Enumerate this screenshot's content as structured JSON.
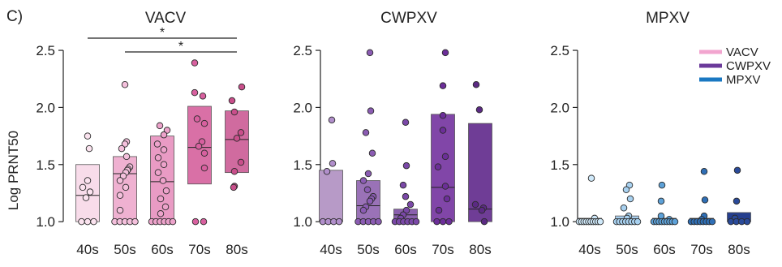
{
  "panel_label": "C)",
  "ylabel": "Log PRNT50",
  "legend": [
    {
      "label": "VACV",
      "color": "#f2a5cf"
    },
    {
      "label": "CWPXV",
      "color": "#6b3a9a"
    },
    {
      "label": "MPXV",
      "color": "#1a78c2"
    }
  ],
  "chart_data": [
    {
      "type": "scatter",
      "title": "VACV",
      "ylabel": "Log PRNT50",
      "categories": [
        "40s",
        "50s",
        "60s",
        "70s",
        "80s"
      ],
      "ylim": [
        0.93,
        2.55
      ],
      "yticks": [
        "1.0",
        "1.5",
        "2.0",
        "2.5"
      ],
      "box_colors": [
        "#f8dcea",
        "#efb1d1",
        "#e99bc4",
        "#d970a6",
        "#d06b9f"
      ],
      "point_colors": [
        "#fbe3ef",
        "#f4c0dc",
        "#eda3cb",
        "#d8609f",
        "#c94f8b"
      ],
      "boxes": [
        {
          "low": 1.0,
          "high": 1.5,
          "median": 1.23
        },
        {
          "low": 1.0,
          "high": 1.57,
          "median": 1.42
        },
        {
          "low": 1.0,
          "high": 1.75,
          "median": 1.35
        },
        {
          "low": 1.33,
          "high": 2.01,
          "median": 1.65
        },
        {
          "low": 1.43,
          "high": 1.97,
          "median": 1.72
        }
      ],
      "points": [
        [
          1.75,
          1.64,
          1.36,
          1.3,
          1.26,
          1.21,
          1.0,
          1.0,
          1.0
        ],
        [
          2.2,
          1.7,
          1.68,
          1.64,
          1.57,
          1.48,
          1.46,
          1.45,
          1.43,
          1.4,
          1.36,
          1.3,
          1.23,
          1.1,
          1.0,
          1.0,
          1.0,
          1.0,
          1.0
        ],
        [
          1.84,
          1.8,
          1.76,
          1.68,
          1.63,
          1.56,
          1.5,
          1.43,
          1.36,
          1.27,
          1.2,
          1.13,
          1.07,
          1.0,
          1.0,
          1.0,
          1.0,
          1.0,
          1.0
        ],
        [
          2.39,
          2.13,
          2.1,
          1.9,
          1.86,
          1.7,
          1.66,
          1.6,
          1.47,
          1.0,
          1.0
        ],
        [
          2.18,
          2.06,
          1.96,
          1.78,
          1.73,
          1.52,
          1.44,
          1.31,
          1.3
        ]
      ],
      "significance": [
        {
          "from": "40s",
          "to": "80s",
          "label": "*"
        },
        {
          "from": "50s",
          "to": "80s",
          "label": "*"
        }
      ]
    },
    {
      "type": "scatter",
      "title": "CWPXV",
      "categories": [
        "40s",
        "50s",
        "60s",
        "70s",
        "80s"
      ],
      "ylim": [
        0.93,
        2.55
      ],
      "yticks": [
        "1.0",
        "1.5",
        "2.0",
        "2.5"
      ],
      "box_colors": [
        "#b79ac7",
        "#9a72b7",
        "#8a60ad",
        "#8146a8",
        "#6f3d96"
      ],
      "point_colors": [
        "#b18fcb",
        "#8b5cb3",
        "#7a48a7",
        "#6c2e99",
        "#5b2a83"
      ],
      "boxes": [
        {
          "low": 1.0,
          "high": 1.45,
          "median": 1.0
        },
        {
          "low": 1.0,
          "high": 1.36,
          "median": 1.14
        },
        {
          "low": 1.0,
          "high": 1.11,
          "median": 1.06
        },
        {
          "low": 1.0,
          "high": 1.94,
          "median": 1.3
        },
        {
          "low": 1.0,
          "high": 1.86,
          "median": 1.11
        }
      ],
      "points": [
        [
          1.89,
          1.51,
          1.44,
          1.0,
          1.0,
          1.0,
          1.0
        ],
        [
          2.48,
          1.97,
          1.78,
          1.6,
          1.42,
          1.36,
          1.28,
          1.22,
          1.2,
          1.18,
          1.13,
          1.1,
          1.0,
          1.0,
          1.0,
          1.0,
          1.0
        ],
        [
          1.87,
          1.49,
          1.32,
          1.22,
          1.15,
          1.1,
          1.06,
          1.03,
          1.0,
          1.0,
          1.0,
          1.0,
          1.0,
          1.0
        ],
        [
          2.48,
          2.19,
          1.93,
          1.8,
          1.57,
          1.48,
          1.31,
          1.2,
          1.1,
          1.0,
          1.0,
          1.0
        ],
        [
          2.2,
          1.98,
          1.15,
          1.12,
          1.1,
          1.0
        ]
      ]
    },
    {
      "type": "scatter",
      "title": "MPXV",
      "categories": [
        "40s",
        "50s",
        "60s",
        "70s",
        "80s"
      ],
      "ylim": [
        0.93,
        2.55
      ],
      "yticks": [
        "1.0",
        "1.5",
        "2.0",
        "2.5"
      ],
      "box_colors": [
        "#cfe6f6",
        "#a9cfee",
        "#6aa7d9",
        "#3f7fc0",
        "#253f8f"
      ],
      "point_colors": [
        "#cfe9fa",
        "#a8d1f0",
        "#5da1d8",
        "#2f6fb6",
        "#2a4a9a"
      ],
      "boxes": [
        {
          "low": 1.0,
          "high": 1.03,
          "median": 1.0
        },
        {
          "low": 1.0,
          "high": 1.05,
          "median": 1.0
        },
        {
          "low": 1.0,
          "high": 1.03,
          "median": 1.0
        },
        {
          "low": 1.0,
          "high": 1.03,
          "median": 1.0
        },
        {
          "low": 1.0,
          "high": 1.08,
          "median": 1.0
        }
      ],
      "points": [
        [
          1.38,
          1.03,
          1.0,
          1.0,
          1.0,
          1.0,
          1.0,
          1.0,
          1.0,
          1.0,
          1.0,
          1.0
        ],
        [
          1.32,
          1.28,
          1.2,
          1.12,
          1.05,
          1.03,
          1.0,
          1.0,
          1.0,
          1.0,
          1.0,
          1.0,
          1.0,
          1.0
        ],
        [
          1.32,
          1.18,
          1.05,
          1.02,
          1.0,
          1.0,
          1.0,
          1.0,
          1.0,
          1.0,
          1.0,
          1.0,
          1.0
        ],
        [
          1.44,
          1.19,
          1.05,
          1.02,
          1.0,
          1.0,
          1.0,
          1.0,
          1.0,
          1.0,
          1.0,
          1.0
        ],
        [
          1.45,
          1.18,
          1.03,
          1.0,
          1.0,
          1.0,
          1.0
        ]
      ]
    }
  ]
}
